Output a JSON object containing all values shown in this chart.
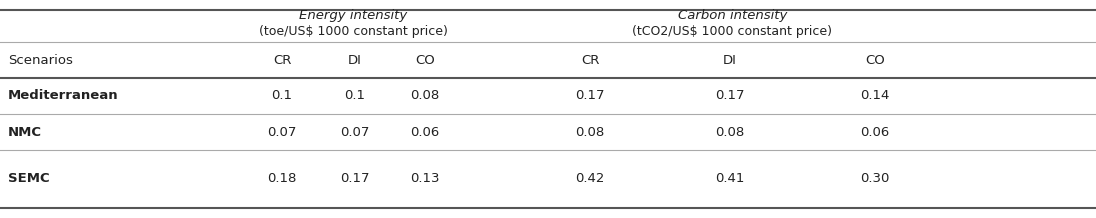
{
  "header1": "Energy intensity",
  "header1_sub": "(toe/US¤ 1000 constant price)",
  "header2": "Carbon intensity",
  "header2_sub": "(tCO2/US¤ 1000 constant price)",
  "col_header": "Scenarios",
  "sub_headers": [
    "CR",
    "DI",
    "CO",
    "CR",
    "DI",
    "CO"
  ],
  "rows": [
    {
      "label": "Mediterranean",
      "bold": true,
      "values": [
        "0.1",
        "0.1",
        "0.08",
        "0.17",
        "0.17",
        "0.14"
      ]
    },
    {
      "label": "NMC",
      "bold": true,
      "values": [
        "0.07",
        "0.07",
        "0.06",
        "0.08",
        "0.08",
        "0.06"
      ]
    },
    {
      "label": "SEMC",
      "bold": true,
      "values": [
        "0.18",
        "0.17",
        "0.13",
        "0.42",
        "0.41",
        "0.30"
      ]
    }
  ],
  "header1_sub_text": "(toe/US$ 1000 constant price)",
  "header2_sub_text": "(tCO2/US$ 1000 constant price)",
  "bg_color": "#ffffff",
  "line_color": "#aaaaaa",
  "thick_line_color": "#555555",
  "text_color": "#222222",
  "font_size": 9.5
}
